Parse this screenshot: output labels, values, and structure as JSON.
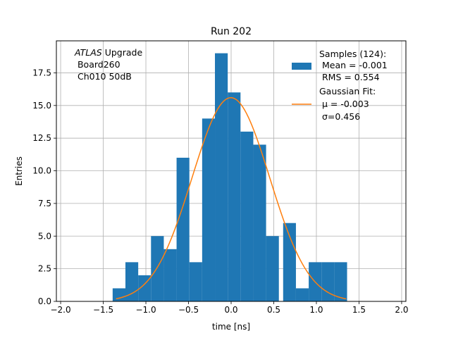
{
  "chart_data": {
    "type": "bar",
    "title": "Run 202",
    "xlabel": "time [ns]",
    "ylabel": "Entries",
    "xlim": [
      -2.05,
      2.05
    ],
    "ylim": [
      0,
      19.95
    ],
    "xticks": [
      -2.0,
      -1.5,
      -1.0,
      -0.5,
      0.0,
      0.5,
      1.0,
      1.5,
      2.0
    ],
    "xtick_labels": [
      "−2.0",
      "−1.5",
      "−1.0",
      "−0.5",
      "0.0",
      "0.5",
      "1.0",
      "1.5",
      "2.0"
    ],
    "yticks": [
      0.0,
      2.5,
      5.0,
      7.5,
      10.0,
      12.5,
      15.0,
      17.5
    ],
    "ytick_labels": [
      "0.0",
      "2.5",
      "5.0",
      "7.5",
      "10.0",
      "12.5",
      "15.0",
      "17.5"
    ],
    "grid": true,
    "bin_width": 0.15,
    "bins": [
      {
        "left": -1.39,
        "value": 1
      },
      {
        "left": -1.24,
        "value": 3
      },
      {
        "left": -1.09,
        "value": 2
      },
      {
        "left": -0.94,
        "value": 5
      },
      {
        "left": -0.79,
        "value": 4
      },
      {
        "left": -0.64,
        "value": 11
      },
      {
        "left": -0.49,
        "value": 3
      },
      {
        "left": -0.34,
        "value": 14
      },
      {
        "left": -0.19,
        "value": 19
      },
      {
        "left": -0.04,
        "value": 16
      },
      {
        "left": 0.11,
        "value": 13
      },
      {
        "left": 0.26,
        "value": 12
      },
      {
        "left": 0.41,
        "value": 5
      },
      {
        "left": 0.61,
        "value": 6
      },
      {
        "left": 0.76,
        "value": 1
      },
      {
        "left": 0.91,
        "value": 3
      },
      {
        "left": 1.06,
        "value": 3
      },
      {
        "left": 1.21,
        "value": 3
      }
    ],
    "fit": {
      "type": "gaussian",
      "amplitude": 15.6,
      "mu": -0.003,
      "sigma": 0.456,
      "x_range": [
        -1.35,
        1.35
      ]
    },
    "annotation_lines": [
      "ATLAS Upgrade",
      " Board260",
      " Ch010 50dB"
    ],
    "legend": {
      "position": "top-right",
      "samples_lines": [
        "Samples (124):",
        " Mean = -0.001",
        " RMS = 0.554"
      ],
      "fit_lines": [
        "Gaussian Fit:",
        " μ = -0.003",
        " σ=0.456"
      ]
    },
    "colors": {
      "bars": "#1f77b4",
      "fit": "#ff7f0e",
      "grid": "#b0b0b0"
    }
  }
}
